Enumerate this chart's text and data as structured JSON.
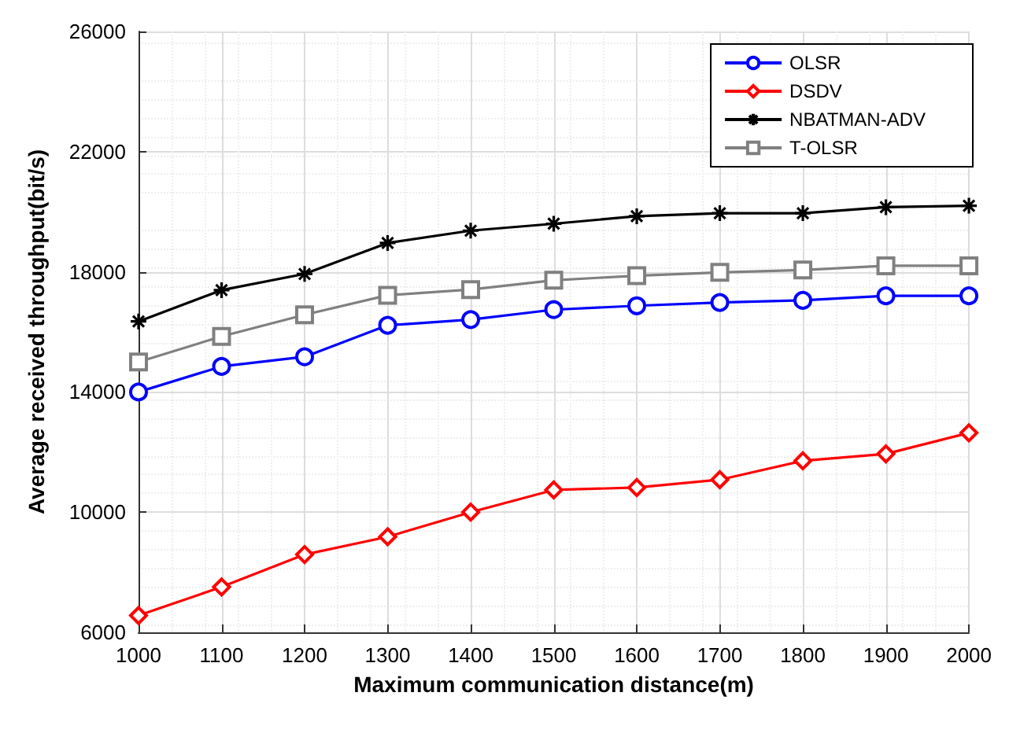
{
  "chart_data": {
    "type": "line",
    "xlabel": "Maximum communication distance(m)",
    "ylabel": "Average received throughput(bit/s)",
    "x": [
      1000,
      1100,
      1200,
      1300,
      1400,
      1500,
      1600,
      1700,
      1800,
      1900,
      2000
    ],
    "series": [
      {
        "name": "OLSR",
        "color": "#0000ff",
        "marker": "circle",
        "values": [
          14000,
          14850,
          15170,
          16220,
          16410,
          16740,
          16870,
          16980,
          17050,
          17200,
          17200
        ]
      },
      {
        "name": "DSDV",
        "color": "#ff0000",
        "marker": "diamond",
        "values": [
          6560,
          7510,
          8590,
          9180,
          10000,
          10740,
          10820,
          11080,
          11710,
          11940,
          12640
        ]
      },
      {
        "name": "NBATMAN-ADV",
        "color": "#000000",
        "marker": "cross",
        "values": [
          16350,
          17390,
          17930,
          18960,
          19370,
          19600,
          19850,
          19950,
          19950,
          20150,
          20200
        ]
      },
      {
        "name": "T-OLSR",
        "color": "#808080",
        "marker": "square",
        "values": [
          15000,
          15850,
          16570,
          17220,
          17410,
          17720,
          17870,
          17980,
          18060,
          18200,
          18200
        ]
      }
    ],
    "xlim": [
      1000,
      2000
    ],
    "xticks": [
      1000,
      1100,
      1200,
      1300,
      1400,
      1500,
      1600,
      1700,
      1800,
      1900,
      2000
    ],
    "ylim": [
      6000,
      26000
    ],
    "yticks": [
      6000,
      10000,
      14000,
      18000,
      22000,
      26000
    ],
    "grid": true,
    "legend": "top right",
    "line_style": "solid"
  }
}
